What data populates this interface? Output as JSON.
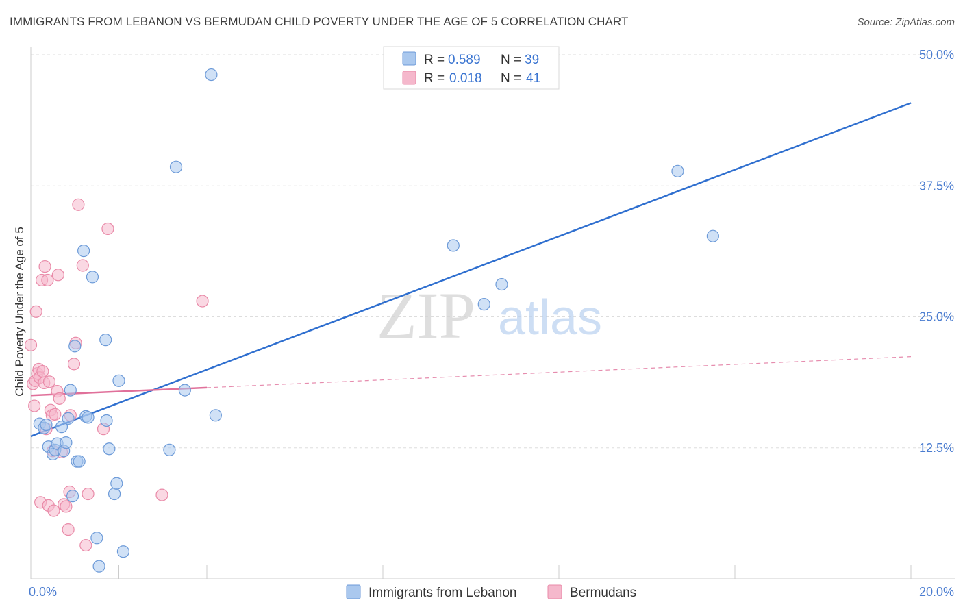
{
  "header": {
    "title": "IMMIGRANTS FROM LEBANON VS BERMUDAN CHILD POVERTY UNDER THE AGE OF 5 CORRELATION CHART",
    "source": "Source: ZipAtlas.com"
  },
  "watermark": {
    "zip": "ZIP",
    "atlas": "atlas"
  },
  "legend": {
    "rows": [
      {
        "r_label": "R = ",
        "r_value": "0.589",
        "n_label": "N = ",
        "n_value": "39"
      },
      {
        "r_label": "R = ",
        "r_value": "0.018",
        "n_label": "N = ",
        "n_value": "41"
      }
    ]
  },
  "colors": {
    "blue_fill": "#aac8ee",
    "blue_stroke": "#6c9ad8",
    "blue_line": "#2f6fcf",
    "pink_fill": "#f5b8cc",
    "pink_stroke": "#e98aa8",
    "pink_line": "#e0709a",
    "grid": "#dddddd",
    "axis_tick": "#4a7cd0"
  },
  "chart_data": {
    "type": "scatter",
    "title": "IMMIGRANTS FROM LEBANON VS BERMUDAN CHILD POVERTY UNDER THE AGE OF 5 CORRELATION CHART",
    "xlabel": "",
    "ylabel": "Child Poverty Under the Age of 5",
    "xlim": [
      0,
      20
    ],
    "ylim": [
      0,
      50
    ],
    "x_tick_labels": [
      {
        "value": 0,
        "label": "0.0%"
      },
      {
        "value": 20,
        "label": "20.0%"
      }
    ],
    "y_tick_labels": [
      {
        "value": 12.5,
        "label": "12.5%"
      },
      {
        "value": 25,
        "label": "25.0%"
      },
      {
        "value": 37.5,
        "label": "37.5%"
      },
      {
        "value": 50,
        "label": "50.0%"
      }
    ],
    "series": [
      {
        "name": "Immigrants from Lebanon",
        "color": "blue",
        "R": 0.589,
        "N": 39,
        "trend": {
          "x0": 0,
          "y0": 13.6,
          "x1": 20,
          "y1": 45.4,
          "solid_to": 20
        },
        "points": [
          [
            0.2,
            14.8
          ],
          [
            0.3,
            14.4
          ],
          [
            0.35,
            14.7
          ],
          [
            0.4,
            12.6
          ],
          [
            0.5,
            11.9
          ],
          [
            0.55,
            12.3
          ],
          [
            0.6,
            12.9
          ],
          [
            0.7,
            14.5
          ],
          [
            0.75,
            12.2
          ],
          [
            0.8,
            13.0
          ],
          [
            0.85,
            15.3
          ],
          [
            0.9,
            18.0
          ],
          [
            0.95,
            7.9
          ],
          [
            1.0,
            22.2
          ],
          [
            1.05,
            11.2
          ],
          [
            1.1,
            11.2
          ],
          [
            1.2,
            31.3
          ],
          [
            1.25,
            15.5
          ],
          [
            1.3,
            15.4
          ],
          [
            1.4,
            28.8
          ],
          [
            1.5,
            3.9
          ],
          [
            1.55,
            1.2
          ],
          [
            1.7,
            22.8
          ],
          [
            1.72,
            15.1
          ],
          [
            1.78,
            12.4
          ],
          [
            1.9,
            8.1
          ],
          [
            1.95,
            9.1
          ],
          [
            2.0,
            18.9
          ],
          [
            2.1,
            2.6
          ],
          [
            3.15,
            12.3
          ],
          [
            3.3,
            39.3
          ],
          [
            3.5,
            18.0
          ],
          [
            4.1,
            48.1
          ],
          [
            4.2,
            15.6
          ],
          [
            9.6,
            31.8
          ],
          [
            10.3,
            26.2
          ],
          [
            10.7,
            28.1
          ],
          [
            14.7,
            38.9
          ],
          [
            15.5,
            32.7
          ]
        ]
      },
      {
        "name": "Bermudans",
        "color": "pink",
        "R": 0.018,
        "N": 41,
        "trend": {
          "x0": 0,
          "y0": 17.5,
          "x1": 20,
          "y1": 21.2,
          "solid_to": 4.0
        },
        "points": [
          [
            0.0,
            22.3
          ],
          [
            0.05,
            18.6
          ],
          [
            0.08,
            16.5
          ],
          [
            0.1,
            18.9
          ],
          [
            0.12,
            25.5
          ],
          [
            0.15,
            19.6
          ],
          [
            0.18,
            20.0
          ],
          [
            0.2,
            19.2
          ],
          [
            0.22,
            7.3
          ],
          [
            0.25,
            28.5
          ],
          [
            0.27,
            19.8
          ],
          [
            0.3,
            18.7
          ],
          [
            0.32,
            29.8
          ],
          [
            0.35,
            14.3
          ],
          [
            0.38,
            28.5
          ],
          [
            0.4,
            7.0
          ],
          [
            0.42,
            18.8
          ],
          [
            0.45,
            16.1
          ],
          [
            0.48,
            15.6
          ],
          [
            0.5,
            12.2
          ],
          [
            0.52,
            6.5
          ],
          [
            0.55,
            15.7
          ],
          [
            0.6,
            17.9
          ],
          [
            0.62,
            29.0
          ],
          [
            0.65,
            17.2
          ],
          [
            0.7,
            12.1
          ],
          [
            0.75,
            7.1
          ],
          [
            0.8,
            6.9
          ],
          [
            0.85,
            4.7
          ],
          [
            0.88,
            8.3
          ],
          [
            0.9,
            15.6
          ],
          [
            0.98,
            20.5
          ],
          [
            1.02,
            22.5
          ],
          [
            1.08,
            35.7
          ],
          [
            1.18,
            29.9
          ],
          [
            1.25,
            3.2
          ],
          [
            1.3,
            8.1
          ],
          [
            1.65,
            14.3
          ],
          [
            1.75,
            33.4
          ],
          [
            2.98,
            8.0
          ],
          [
            3.9,
            26.5
          ]
        ]
      }
    ]
  },
  "bottom_legend": [
    {
      "label": "Immigrants from Lebanon",
      "color": "blue"
    },
    {
      "label": "Bermudans",
      "color": "pink"
    }
  ]
}
